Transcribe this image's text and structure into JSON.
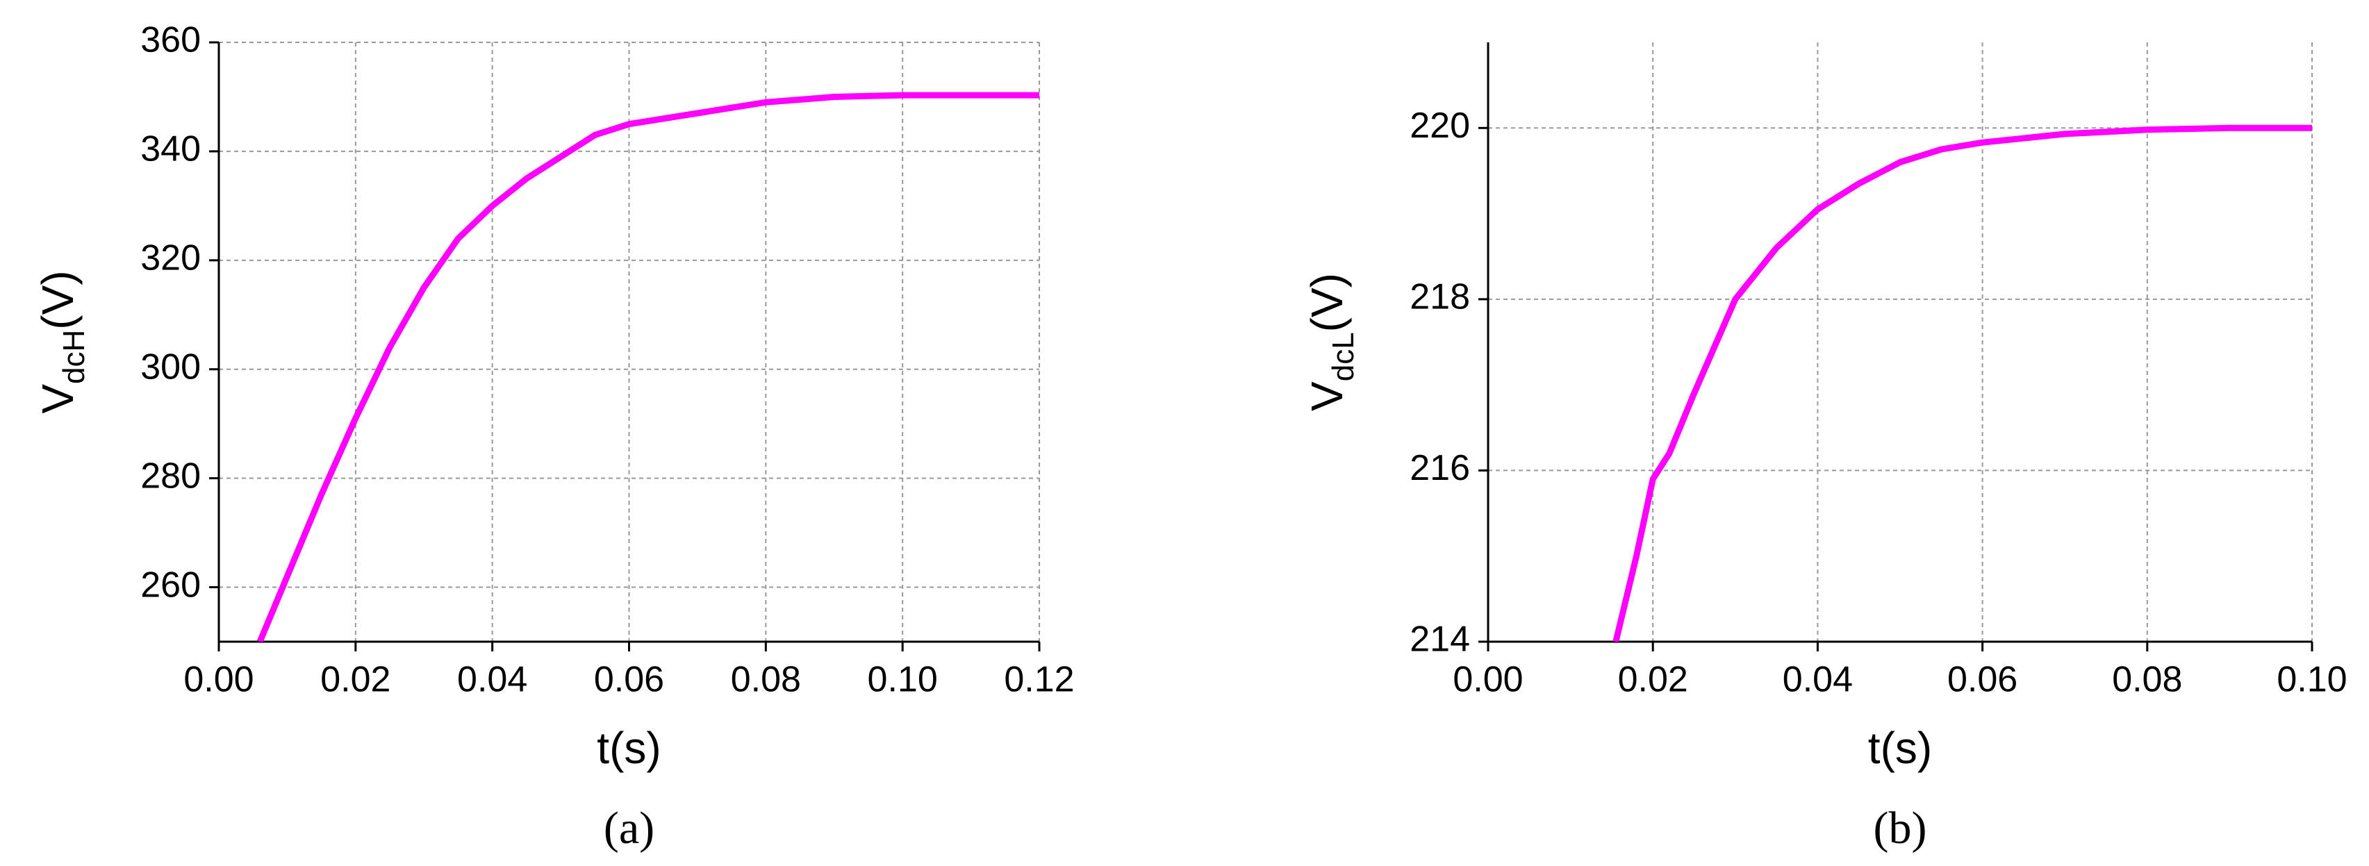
{
  "chart_data": [
    {
      "type": "line",
      "color": "#ff00ff",
      "ylabel": {
        "main": "V",
        "sub": "dcH",
        "unit": "(V)"
      },
      "xlabel": "t(s)",
      "caption": "(a)",
      "x": [
        0.006,
        0.01,
        0.015,
        0.02,
        0.025,
        0.03,
        0.035,
        0.04,
        0.045,
        0.05,
        0.055,
        0.06,
        0.07,
        0.08,
        0.09,
        0.1,
        0.11,
        0.12
      ],
      "values": [
        250,
        262,
        277,
        291,
        304,
        315,
        324,
        330,
        335,
        339,
        343,
        345,
        347,
        349,
        350,
        350.3,
        350.3,
        350.3
      ],
      "xlim": [
        0,
        0.12
      ],
      "xticks": [
        {
          "value": 0,
          "label": "0.00"
        },
        {
          "value": 0.02,
          "label": "0.02"
        },
        {
          "value": 0.04,
          "label": "0.04"
        },
        {
          "value": 0.06,
          "label": "0.06"
        },
        {
          "value": 0.08,
          "label": "0.08"
        },
        {
          "value": 0.1,
          "label": "0.10"
        },
        {
          "value": 0.12,
          "label": "0.12"
        }
      ],
      "ylim": [
        250,
        360
      ],
      "yticks": [
        260,
        280,
        300,
        320,
        340,
        360
      ],
      "grid": true
    },
    {
      "type": "line",
      "color": "#ff00ff",
      "ylabel": {
        "main": "V",
        "sub": "dcL",
        "unit": "(V)"
      },
      "xlabel": "t(s)",
      "caption": "(b)",
      "x": [
        0.0155,
        0.018,
        0.02,
        0.022,
        0.025,
        0.03,
        0.035,
        0.04,
        0.045,
        0.05,
        0.055,
        0.06,
        0.07,
        0.08,
        0.09,
        0.1
      ],
      "values": [
        214,
        215,
        215.9,
        216.2,
        216.9,
        218,
        218.6,
        219.05,
        219.35,
        219.6,
        219.75,
        219.83,
        219.93,
        219.98,
        220,
        220
      ],
      "xlim": [
        0,
        0.1
      ],
      "xticks": [
        {
          "value": 0,
          "label": "0.00"
        },
        {
          "value": 0.02,
          "label": "0.02"
        },
        {
          "value": 0.04,
          "label": "0.04"
        },
        {
          "value": 0.06,
          "label": "0.06"
        },
        {
          "value": 0.08,
          "label": "0.08"
        },
        {
          "value": 0.1,
          "label": "0.10"
        }
      ],
      "ylim": [
        214,
        221
      ],
      "yticks": [
        214,
        216,
        218,
        220
      ],
      "grid": true
    }
  ]
}
